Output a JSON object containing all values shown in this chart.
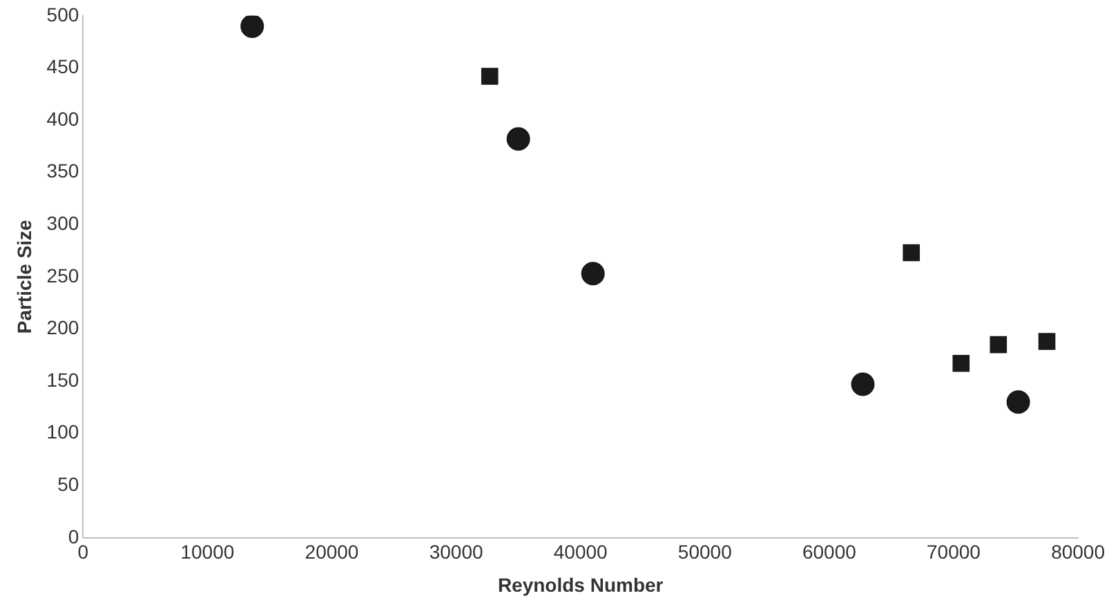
{
  "chart_data": {
    "type": "scatter",
    "xlabel": "Reynolds Number",
    "ylabel": "Particle Size",
    "xlim": [
      0,
      80000
    ],
    "xticks": [
      0,
      10000,
      20000,
      30000,
      40000,
      50000,
      60000,
      70000,
      80000
    ],
    "ylim": [
      0,
      500
    ],
    "yticks": [
      0,
      50,
      100,
      150,
      200,
      250,
      300,
      350,
      400,
      450,
      500
    ],
    "grid": false,
    "legend": false,
    "series": [
      {
        "color": "#1a1a1a",
        "marker": "circle",
        "x": [
          13600,
          35000,
          41000,
          62700,
          75200
        ],
        "values": [
          490,
          382,
          253,
          147,
          130
        ]
      },
      {
        "color": "#1a1a1a",
        "marker": "square",
        "x": [
          32700,
          66600,
          70600,
          73600,
          77500
        ],
        "values": [
          442,
          273,
          167,
          185,
          188
        ]
      }
    ]
  }
}
